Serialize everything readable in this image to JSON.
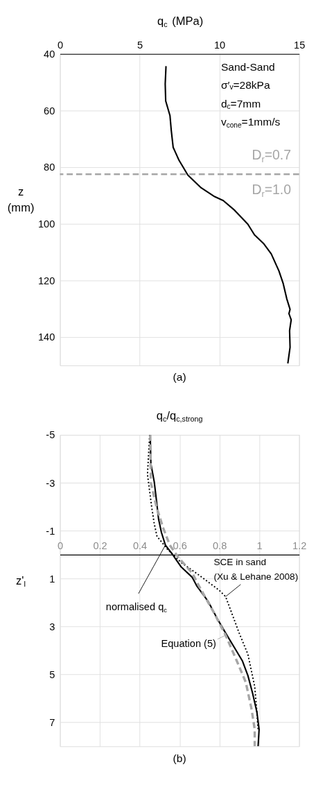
{
  "chart_data": [
    {
      "type": "line",
      "title": "(a)",
      "xlabel": "q$_{c}$ (MPa)",
      "ylabel": "z\n(mm)",
      "xlim": [
        0,
        15
      ],
      "xticks": [
        0,
        5,
        10,
        15
      ],
      "ylim": [
        150,
        40
      ],
      "yticks": [
        40,
        60,
        80,
        100,
        120,
        140
      ],
      "grid": true,
      "series": [
        {
          "color": "#000000",
          "line_style": "solid",
          "x": [
            6.65,
            6.6,
            6.63,
            6.9,
            6.98,
            7.1,
            7.47,
            8.02,
            8.86,
            9.7,
            10.24,
            10.95,
            11.78,
            12.2,
            12.76,
            13.25,
            13.73,
            14.0,
            14.22,
            14.43,
            14.36,
            14.5,
            14.4,
            14.43,
            14.29
          ],
          "values": [
            44.3,
            50.6,
            56.6,
            61.8,
            67,
            73,
            77.6,
            82.8,
            87.3,
            90.4,
            91.8,
            95.2,
            100.1,
            103.9,
            106.9,
            110.6,
            116.6,
            121.1,
            126.4,
            130.2,
            131.7,
            133.9,
            137.7,
            143.6,
            149.3
          ]
        }
      ],
      "ref_lines": [
        {
          "axis": "y",
          "value": 82.5,
          "color": "#a6a6a6",
          "line_style": "dashed"
        }
      ],
      "annotations": [
        "Sand-Sand",
        "σ′ᵥ=28kPa",
        "d$_{c}$=7mm",
        "v$_{cone}$=1mm/s",
        "D$_{r}$=0.7",
        "D$_{r}$=1.0"
      ]
    },
    {
      "type": "line",
      "title": "(b)",
      "xlabel": "q$_{c}$/q$_{c,strong}$",
      "ylabel": "z'$_{I}$",
      "xlim": [
        0,
        1.2
      ],
      "xticks": [
        0,
        0.2,
        0.4,
        0.6,
        0.8,
        1,
        1.2
      ],
      "ylim": [
        8,
        -5
      ],
      "yticks": [
        -5,
        -3,
        -1,
        1,
        3,
        5,
        7
      ],
      "grid": true,
      "series": [
        {
          "name": "normalised q$_{c}$",
          "color": "#000000",
          "line_style": "solid",
          "x": [
            0.453,
            0.456,
            0.473,
            0.484,
            0.495,
            0.509,
            0.529,
            0.562,
            0.607,
            0.663,
            0.686,
            0.742,
            0.787,
            0.831,
            0.876,
            0.915,
            0.943,
            0.966,
            0.988,
            0.999,
            0.994
          ],
          "values": [
            -5,
            -3.8,
            -3.04,
            -2.27,
            -1.47,
            -0.93,
            -0.4,
            -0.04,
            0.5,
            0.94,
            1.3,
            1.93,
            2.64,
            3.27,
            3.89,
            4.43,
            5.05,
            5.77,
            6.57,
            7.29,
            8.0
          ]
        },
        {
          "name": "SCE in sand (Xu & Lehane 2008)",
          "color": "#000000",
          "line_style": "dotted",
          "x": [
            0.45,
            0.439,
            0.46,
            0.473,
            0.487,
            0.54,
            0.607,
            0.697,
            0.798,
            0.831,
            0.899,
            0.943,
            0.977,
            0.988,
            0.994
          ],
          "values": [
            -5,
            -3.35,
            -2.0,
            -1.29,
            -0.76,
            -0.22,
            0.32,
            0.85,
            1.48,
            1.75,
            3.27,
            4.16,
            5.5,
            6.57,
            7.29
          ]
        },
        {
          "name": "Equation (5)",
          "color": "#a6a6a6",
          "line_style": "dashed",
          "x": [
            0.453,
            0.456,
            0.484,
            0.518,
            0.551,
            0.596,
            0.663,
            0.697,
            0.775,
            0.831,
            0.887,
            0.932,
            0.96,
            0.977,
            0.977
          ],
          "values": [
            -5,
            -3.0,
            -2.0,
            -1.11,
            -0.4,
            0.14,
            0.76,
            1.3,
            2.46,
            3.36,
            4.43,
            5.32,
            6.39,
            7.29,
            8.0
          ]
        }
      ]
    }
  ]
}
